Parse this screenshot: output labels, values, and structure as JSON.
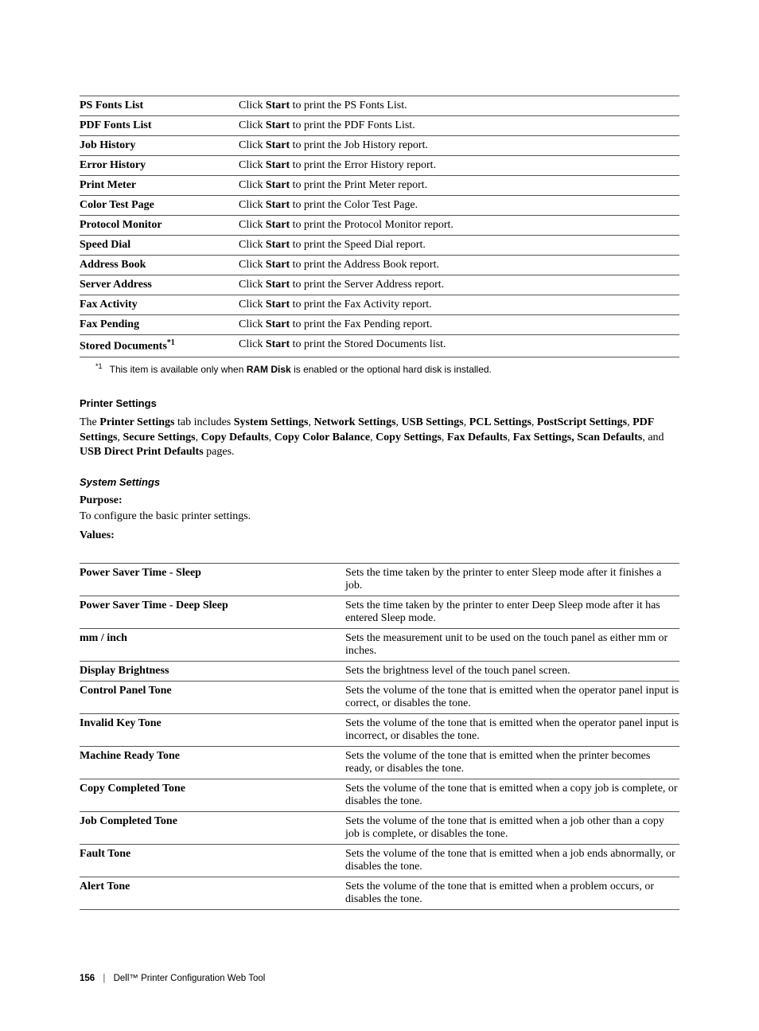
{
  "reportTable": {
    "rows": [
      {
        "label": "PS Fonts List",
        "pre": "Click ",
        "bold": "Start",
        "post": " to print the PS Fonts List."
      },
      {
        "label": "PDF Fonts List",
        "pre": "Click ",
        "bold": "Start",
        "post": " to print the PDF Fonts List."
      },
      {
        "label": "Job History",
        "pre": "Click ",
        "bold": "Start",
        "post": " to print the Job History report."
      },
      {
        "label": "Error History",
        "pre": "Click ",
        "bold": "Start",
        "post": " to print the Error History report."
      },
      {
        "label": "Print Meter",
        "pre": "Click ",
        "bold": "Start",
        "post": " to print the Print Meter report."
      },
      {
        "label": "Color Test Page",
        "pre": "Click ",
        "bold": "Start",
        "post": " to print the Color Test Page."
      },
      {
        "label": "Protocol Monitor",
        "pre": "Click ",
        "bold": "Start",
        "post": " to print the Protocol Monitor report."
      },
      {
        "label": "Speed Dial",
        "pre": "Click ",
        "bold": "Start",
        "post": " to print the Speed Dial report."
      },
      {
        "label": "Address Book",
        "pre": "Click ",
        "bold": "Start",
        "post": " to print the Address Book report."
      },
      {
        "label": "Server Address",
        "pre": "Click ",
        "bold": "Start",
        "post": " to print the Server Address report."
      },
      {
        "label": "Fax Activity",
        "pre": "Click ",
        "bold": "Start",
        "post": " to print the Fax Activity report."
      },
      {
        "label": "Fax Pending",
        "pre": "Click ",
        "bold": "Start",
        "post": " to print the Fax Pending report."
      },
      {
        "label": "Stored Documents",
        "sup": "*1",
        "pre": "Click ",
        "bold": "Start",
        "post": " to print the Stored Documents list."
      }
    ],
    "footnote": {
      "sup": "*1",
      "pre": "This item is available only when ",
      "bold": "RAM Disk",
      "post": " is enabled or the optional hard disk is installed."
    }
  },
  "printerSettings": {
    "heading": "Printer Settings",
    "paragraph": {
      "t1": "The ",
      "b1": "Printer Settings",
      "t2": " tab includes ",
      "b2": "System Settings",
      "t3": ", ",
      "b3": "Network Settings",
      "t4": ", ",
      "b4": "USB Settings",
      "t5": ", ",
      "b5": "PCL Settings",
      "t6": ", ",
      "b6": "PostScript Settings",
      "t7": ", ",
      "b7": "PDF Settings",
      "t8": ", ",
      "b8": "Secure Settings",
      "t9": ", ",
      "b9": "Copy Defaults",
      "t10": ", ",
      "b10": "Copy Color Balance",
      "t11": ", ",
      "b11": "Copy Settings",
      "t12": ", ",
      "b12": "Fax Defaults",
      "t13": ", ",
      "b13": "Fax Settings, Scan Defaults",
      "t14": ", and ",
      "b14": "USB Direct Print Defaults",
      "t15": " pages."
    }
  },
  "systemSettings": {
    "heading": "System Settings",
    "purposeLabel": "Purpose:",
    "purposeText": "To configure the basic printer settings.",
    "valuesLabel": "Values:",
    "rows": [
      {
        "label": "Power Saver Time - Sleep",
        "desc": "Sets the time taken by the printer to enter Sleep mode after it finishes a job."
      },
      {
        "label": "Power Saver Time - Deep Sleep",
        "desc": "Sets the time taken by the printer to enter Deep Sleep mode after it has entered Sleep mode."
      },
      {
        "label": "mm / inch",
        "desc": "Sets the measurement unit to be used on the touch panel as either mm or inches."
      },
      {
        "label": "Display Brightness",
        "desc": "Sets the brightness level of the touch panel screen."
      },
      {
        "label": "Control Panel Tone",
        "desc": "Sets the volume of the tone that is emitted when the operator panel input is correct, or disables the tone."
      },
      {
        "label": "Invalid Key Tone",
        "desc": "Sets the volume of the tone that is emitted when the operator panel input is incorrect, or disables the tone."
      },
      {
        "label": "Machine Ready Tone",
        "desc": "Sets the volume of the tone that is emitted when the printer becomes ready, or disables the tone."
      },
      {
        "label": "Copy Completed Tone",
        "desc": "Sets the volume of the tone that is emitted when a copy job is complete, or disables the tone."
      },
      {
        "label": "Job Completed Tone",
        "desc": "Sets the volume of the tone that is emitted when a job other than a copy job is complete, or disables the tone."
      },
      {
        "label": "Fault Tone",
        "desc": "Sets the volume of the tone that is emitted when a job ends abnormally, or disables the tone."
      },
      {
        "label": "Alert Tone",
        "desc": "Sets the volume of the tone that is emitted when a problem occurs, or disables the tone."
      }
    ]
  },
  "footer": {
    "pageNumber": "156",
    "title": "Dell™ Printer Configuration Web Tool"
  }
}
